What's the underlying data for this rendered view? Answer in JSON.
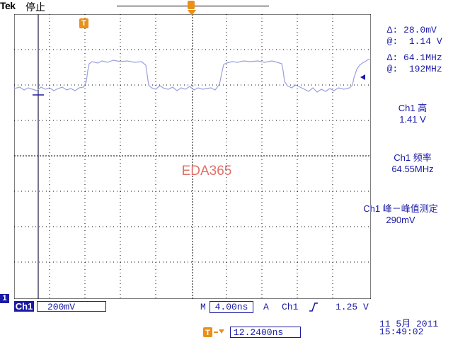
{
  "header": {
    "brand": "Tek",
    "state": "停止"
  },
  "markers": {
    "trigger": "T",
    "position": "T",
    "channel": "1"
  },
  "watermark": "EDA365",
  "cursor_readouts": [
    {
      "symbol": "Δ:",
      "value": "28.0mV"
    },
    {
      "symbol": "@:",
      "value": "1.14 V"
    },
    {
      "symbol": "Δ:",
      "value": "64.1MHz"
    },
    {
      "symbol": "@:",
      "value": "192MHz"
    }
  ],
  "measurements": [
    {
      "label": "Ch1 高",
      "value": "1.41 V"
    },
    {
      "label": "Ch1 频率",
      "value": "64.55MHz"
    },
    {
      "label": "Ch1 峰－峰值测定",
      "value": "290mV"
    }
  ],
  "bottom": {
    "channel": "Ch1",
    "volts_per_div": "200mV",
    "time_label": "M",
    "time_per_div": "4.00ns",
    "trigger_label": "A",
    "trigger_source": "Ch1",
    "trigger_level": "1.25 V",
    "position": "12.2400ns",
    "date": "11 5月  2011",
    "time": "15:49:02"
  },
  "colors": {
    "trace": "#9aa0e0",
    "accent": "#1a1aa6",
    "trigger_marker": "#e8901a",
    "watermark": "#e0706a"
  }
}
